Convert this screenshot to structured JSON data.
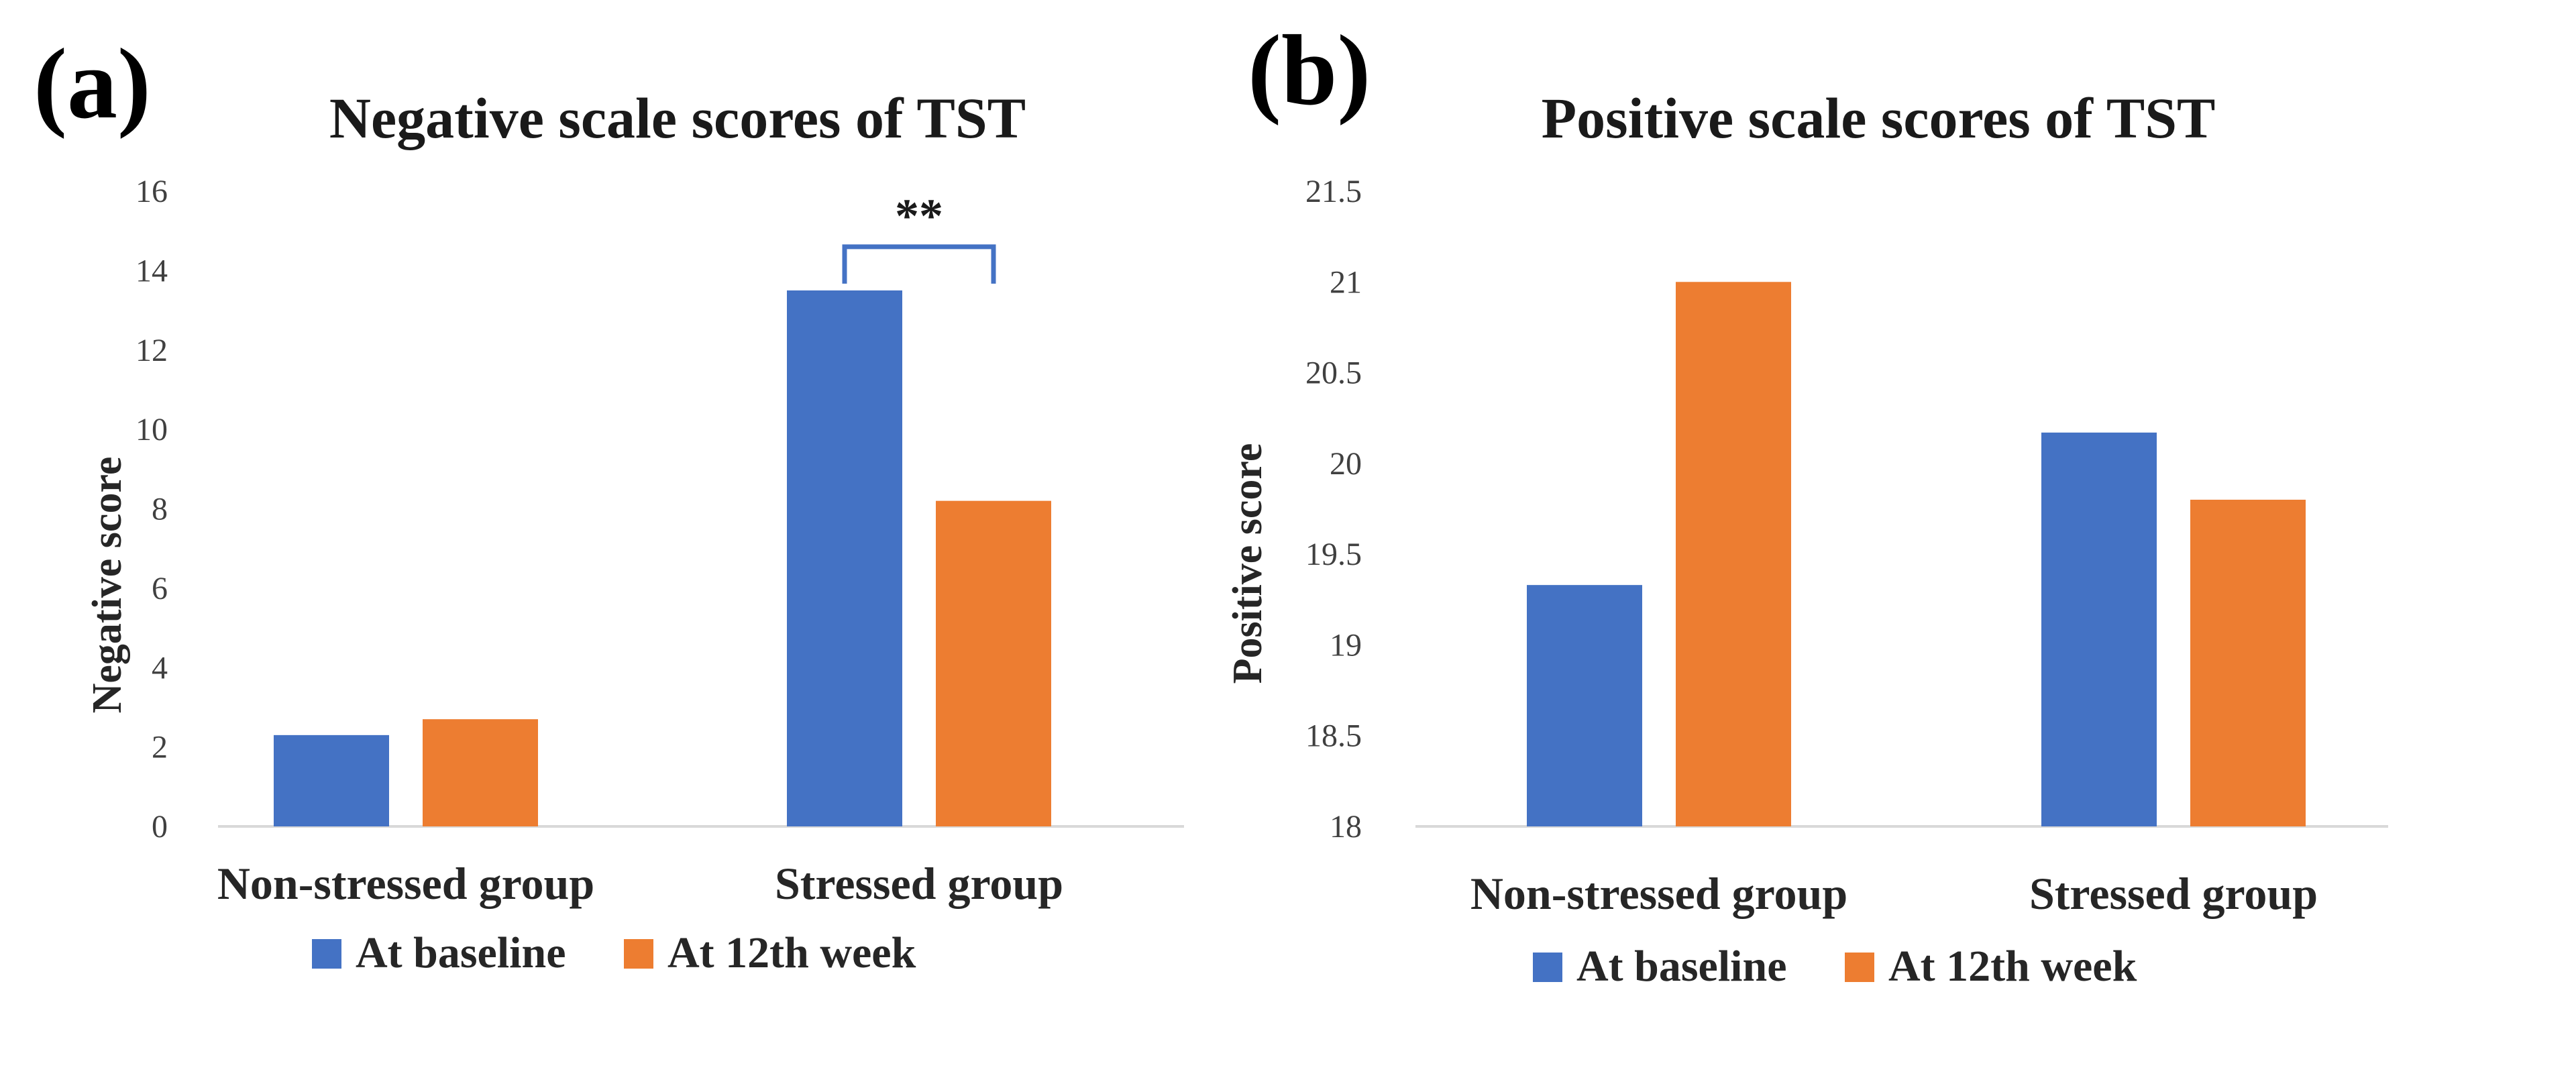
{
  "colors": {
    "baseline": "#4472C4",
    "week12": "#ED7D31",
    "axis": "#d9d9d9",
    "bracket": "#4472C4"
  },
  "chart_data": [
    {
      "panel_label": "(a)",
      "type": "bar",
      "title": "Negative scale scores of TST",
      "xlabel": "",
      "ylabel": "Negative score",
      "ylim": [
        0,
        16
      ],
      "y_ticks": [
        0,
        2,
        4,
        6,
        8,
        10,
        12,
        14,
        16
      ],
      "grid": false,
      "legend_position": "bottom",
      "categories": [
        "Non-stressed group",
        "Stressed group"
      ],
      "series": [
        {
          "name": "At baseline",
          "values": [
            2.3,
            13.5
          ]
        },
        {
          "name": "At 12th week",
          "values": [
            2.7,
            8.2
          ]
        }
      ],
      "annotations": [
        {
          "text": "**",
          "category": "Stressed group",
          "between": [
            "At baseline",
            "At 12th week"
          ],
          "y": 14.6
        }
      ]
    },
    {
      "panel_label": "(b)",
      "type": "bar",
      "title": "Positive scale scores of TST",
      "xlabel": "",
      "ylabel": "Positive score",
      "ylim": [
        18,
        21.5
      ],
      "y_ticks": [
        18,
        18.5,
        19,
        19.5,
        20,
        20.5,
        21,
        21.5
      ],
      "grid": false,
      "legend_position": "bottom",
      "categories": [
        "Non-stressed group",
        "Stressed group"
      ],
      "series": [
        {
          "name": "At baseline",
          "values": [
            19.33,
            20.17
          ]
        },
        {
          "name": "At 12th week",
          "values": [
            21.0,
            19.8
          ]
        }
      ],
      "annotations": []
    }
  ]
}
